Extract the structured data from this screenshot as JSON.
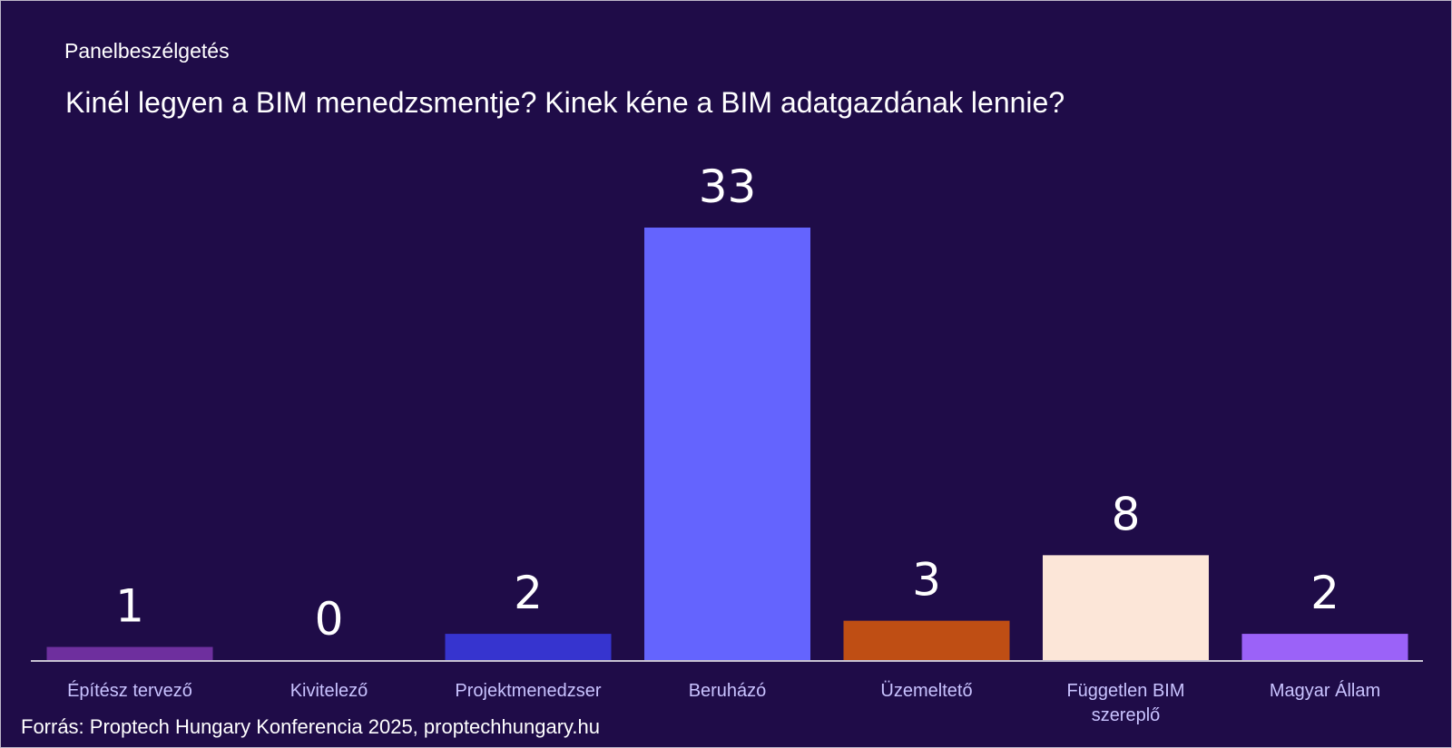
{
  "header": {
    "kicker": "Panelbeszélgetés",
    "title": "Kinél legyen a BIM menedzsmentje? Kinek kéne a BIM adatgazdának lennie?"
  },
  "footer": {
    "source": "Forrás: Proptech Hungary Konferencia 2025, proptechhungary.hu"
  },
  "chart_data": {
    "type": "bar",
    "title": "Kinél legyen a BIM menedzsmentje? Kinek kéne a BIM adatgazdának lennie?",
    "categories": [
      [
        "Építész tervező"
      ],
      [
        "Kivitelező"
      ],
      [
        "Projektmenedzser"
      ],
      [
        "Beruházó"
      ],
      [
        "Üzemeltető"
      ],
      [
        "Független BIM",
        "szereplő"
      ],
      [
        "Magyar Állam"
      ]
    ],
    "values": [
      1,
      0,
      2,
      33,
      3,
      8,
      2
    ],
    "colors": [
      "#6e2f9e",
      "#3b2aa0",
      "#3634cf",
      "#6464fe",
      "#bf4e14",
      "#fce6d8",
      "#9b62f8"
    ],
    "ylim": [
      0,
      33
    ],
    "grid": false,
    "legend": "none",
    "data_labels": true
  }
}
